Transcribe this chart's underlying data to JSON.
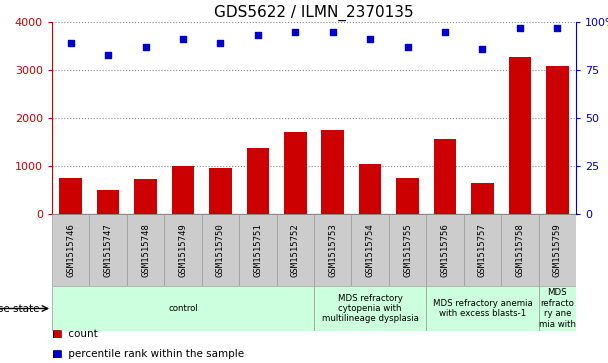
{
  "title": "GDS5622 / ILMN_2370135",
  "samples": [
    "GSM1515746",
    "GSM1515747",
    "GSM1515748",
    "GSM1515749",
    "GSM1515750",
    "GSM1515751",
    "GSM1515752",
    "GSM1515753",
    "GSM1515754",
    "GSM1515755",
    "GSM1515756",
    "GSM1515757",
    "GSM1515758",
    "GSM1515759"
  ],
  "counts": [
    750,
    500,
    730,
    1000,
    950,
    1380,
    1700,
    1750,
    1050,
    750,
    1560,
    650,
    3280,
    3080
  ],
  "percentiles": [
    89,
    83,
    87,
    91,
    89,
    93,
    95,
    95,
    91,
    87,
    95,
    86,
    97,
    97
  ],
  "bar_color": "#cc0000",
  "dot_color": "#0000cc",
  "ylim_left": [
    0,
    4000
  ],
  "ylim_right": [
    0,
    100
  ],
  "yticks_left": [
    0,
    1000,
    2000,
    3000,
    4000
  ],
  "ytick_labels_left": [
    "0",
    "1000",
    "2000",
    "3000",
    "4000"
  ],
  "yticks_right": [
    0,
    25,
    50,
    75,
    100
  ],
  "ytick_labels_right": [
    "0",
    "25",
    "50",
    "75",
    "100%"
  ],
  "disease_groups": [
    {
      "label": "control",
      "start": 0,
      "end": 7
    },
    {
      "label": "MDS refractory\ncytopenia with\nmultilineage dysplasia",
      "start": 7,
      "end": 10
    },
    {
      "label": "MDS refractory anemia\nwith excess blasts-1",
      "start": 10,
      "end": 13
    },
    {
      "label": "MDS\nrefracto\nry ane\nmia with",
      "start": 13,
      "end": 14
    }
  ],
  "disease_group_color": "#ccffdd",
  "sample_bg_color": "#cccccc",
  "sample_border_color": "#999999",
  "disease_state_label": "disease state",
  "legend_count_label": "count",
  "legend_percentile_label": "percentile rank within the sample",
  "grid_color": "#888888",
  "bg_color": "#ffffff",
  "xticklabel_fontsize": 6.5,
  "title_fontsize": 11
}
